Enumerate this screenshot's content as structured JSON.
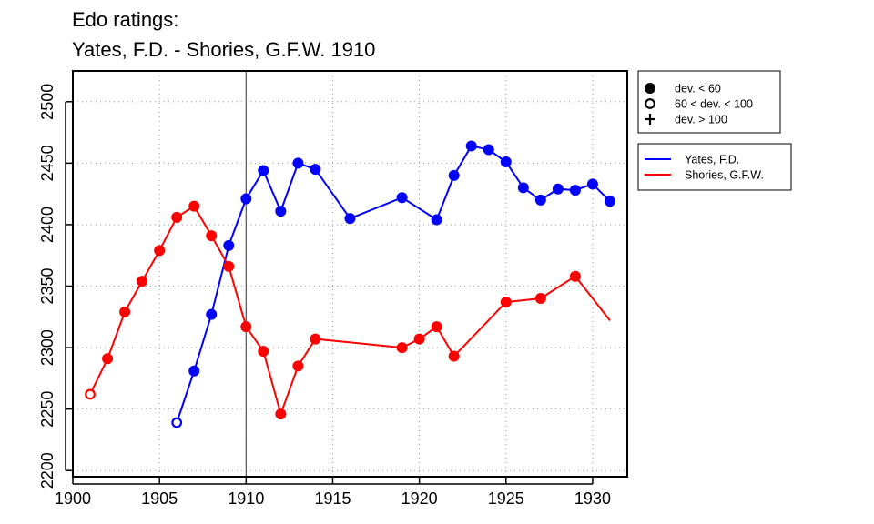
{
  "chart_data": {
    "type": "line",
    "title": [
      "Edo ratings:",
      "Yates, F.D. - Shories, G.F.W. 1910"
    ],
    "xlabel": "",
    "ylabel": "",
    "xlim": [
      1900,
      1932
    ],
    "ylim": [
      2195,
      2525
    ],
    "x_ticks": [
      1900,
      1905,
      1910,
      1915,
      1920,
      1925,
      1930
    ],
    "y_ticks": [
      2200,
      2250,
      2300,
      2350,
      2400,
      2450,
      2500
    ],
    "grid": true,
    "marker_line_x": 1910,
    "marker_legend": [
      {
        "symbol": "filled-circle",
        "label": "dev. < 60"
      },
      {
        "symbol": "open-circle",
        "label": "60 < dev. < 100"
      },
      {
        "symbol": "plus",
        "label": "dev. > 100"
      }
    ],
    "series": [
      {
        "name": "Yates, F.D.",
        "color": "#0000ff",
        "points": [
          {
            "x": 1906,
            "y": 2239,
            "dev": "mid"
          },
          {
            "x": 1907,
            "y": 2281,
            "dev": "low"
          },
          {
            "x": 1908,
            "y": 2327,
            "dev": "low"
          },
          {
            "x": 1909,
            "y": 2383,
            "dev": "low"
          },
          {
            "x": 1910,
            "y": 2421,
            "dev": "low"
          },
          {
            "x": 1911,
            "y": 2444,
            "dev": "low"
          },
          {
            "x": 1912,
            "y": 2411,
            "dev": "low"
          },
          {
            "x": 1913,
            "y": 2450,
            "dev": "low"
          },
          {
            "x": 1914,
            "y": 2445,
            "dev": "low"
          },
          {
            "x": 1916,
            "y": 2405,
            "dev": "low"
          },
          {
            "x": 1919,
            "y": 2422,
            "dev": "low"
          },
          {
            "x": 1921,
            "y": 2404,
            "dev": "low"
          },
          {
            "x": 1922,
            "y": 2440,
            "dev": "low"
          },
          {
            "x": 1923,
            "y": 2464,
            "dev": "low"
          },
          {
            "x": 1924,
            "y": 2461,
            "dev": "low"
          },
          {
            "x": 1925,
            "y": 2451,
            "dev": "low"
          },
          {
            "x": 1926,
            "y": 2430,
            "dev": "low"
          },
          {
            "x": 1927,
            "y": 2420,
            "dev": "low"
          },
          {
            "x": 1928,
            "y": 2429,
            "dev": "low"
          },
          {
            "x": 1929,
            "y": 2428,
            "dev": "low"
          },
          {
            "x": 1930,
            "y": 2433,
            "dev": "low"
          },
          {
            "x": 1931,
            "y": 2419,
            "dev": "low"
          }
        ]
      },
      {
        "name": "Shories, G.F.W.",
        "color": "#ff0000",
        "points": [
          {
            "x": 1901,
            "y": 2262,
            "dev": "mid"
          },
          {
            "x": 1902,
            "y": 2291,
            "dev": "low"
          },
          {
            "x": 1903,
            "y": 2329,
            "dev": "low"
          },
          {
            "x": 1904,
            "y": 2354,
            "dev": "low"
          },
          {
            "x": 1905,
            "y": 2379,
            "dev": "low"
          },
          {
            "x": 1906,
            "y": 2406,
            "dev": "low"
          },
          {
            "x": 1907,
            "y": 2415,
            "dev": "low"
          },
          {
            "x": 1908,
            "y": 2391,
            "dev": "low"
          },
          {
            "x": 1909,
            "y": 2366,
            "dev": "low"
          },
          {
            "x": 1910,
            "y": 2317,
            "dev": "low"
          },
          {
            "x": 1911,
            "y": 2297,
            "dev": "low"
          },
          {
            "x": 1912,
            "y": 2246,
            "dev": "low"
          },
          {
            "x": 1913,
            "y": 2285,
            "dev": "low"
          },
          {
            "x": 1914,
            "y": 2307,
            "dev": "low"
          },
          {
            "x": 1919,
            "y": 2300,
            "dev": "low"
          },
          {
            "x": 1920,
            "y": 2307,
            "dev": "low"
          },
          {
            "x": 1921,
            "y": 2317,
            "dev": "low"
          },
          {
            "x": 1922,
            "y": 2293,
            "dev": "low"
          },
          {
            "x": 1925,
            "y": 2337,
            "dev": "low"
          },
          {
            "x": 1927,
            "y": 2340,
            "dev": "low"
          },
          {
            "x": 1929,
            "y": 2358,
            "dev": "low"
          },
          {
            "x": 1931,
            "y": 2322,
            "dev": "none"
          }
        ]
      }
    ]
  }
}
